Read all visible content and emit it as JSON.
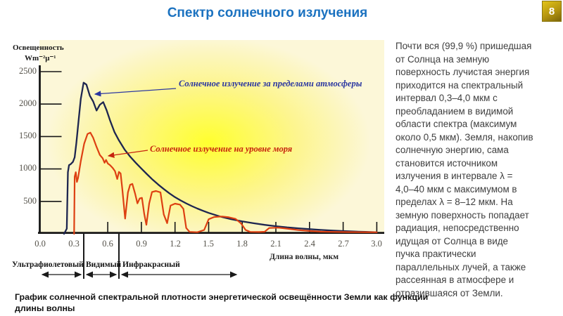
{
  "slide": {
    "number": "8",
    "title": "Спектр солнечного излучения",
    "title_color": "#1b72c0",
    "badge_color": "#b5950f"
  },
  "body": {
    "lines": [
      "Почти вся (99,9 %) пришедшая",
      "от Солнца на земную",
      "поверхность лучистая энергия",
      "приходится на спектральный",
      "интервал 0,3–4,0 мкм с",
      "преобладанием в видимой",
      "области спектра (максимум",
      "около 0,5 мкм). Земля, накопив",
      "солнечную энергию, сама",
      "становится источником",
      "излучения в интервале λ =",
      "4,0–40 мкм с максимумом в",
      "пределах λ = 8–12 мкм. На",
      "земную поверхность попадает",
      "радиация, непосредственно",
      "идущая от Солнца в виде",
      "пучка практически",
      "параллельных лучей, а также",
      "рассеянная в атмосфере и",
      "отразившаяся от Земли."
    ]
  },
  "caption": {
    "lines": [
      "График солнечной спектральной плотности энергетической освещённости Земли как функции",
      "длины волны"
    ]
  },
  "chart_data": {
    "type": "line",
    "title": "",
    "xlabel": "Длина волны, мкм",
    "ylabel": "Освещенность",
    "ylabel_units": "Wm⁻²μ⁻¹",
    "xlim": [
      0,
      3.0
    ],
    "ylim": [
      0,
      2500
    ],
    "grid": false,
    "x_tick_labels": [
      "0.0",
      "0.3",
      "0.6",
      "0.9",
      "1.2",
      "1.5",
      "1.8",
      "2.1",
      "2.4",
      "2.7",
      "3.0"
    ],
    "y_tick_labels": [
      "2500",
      "2000",
      "1500",
      "1000",
      "500"
    ],
    "background_glow_color": "#ffff2f",
    "series": [
      {
        "name": "Солнечное излучение за пределами атмосферы",
        "color": "#1e2650",
        "x": [
          0.21,
          0.235,
          0.245,
          0.255,
          0.27,
          0.29,
          0.305,
          0.32,
          0.34,
          0.36,
          0.385,
          0.41,
          0.44,
          0.47,
          0.5,
          0.53,
          0.56,
          0.59,
          0.62,
          0.66,
          0.7,
          0.75,
          0.8,
          0.85,
          0.9,
          0.95,
          1.0,
          1.05,
          1.1,
          1.15,
          1.2,
          1.25,
          1.3,
          1.35,
          1.4,
          1.45,
          1.5,
          1.6,
          1.7,
          1.8,
          1.9,
          2.0,
          2.1,
          2.2,
          2.3,
          2.4,
          2.5,
          2.6,
          2.7,
          2.8,
          2.9,
          3.0
        ],
        "y": [
          0,
          80,
          950,
          1060,
          1075,
          1110,
          1180,
          1400,
          1750,
          2080,
          2330,
          2300,
          2130,
          2040,
          1900,
          1990,
          2030,
          1905,
          1750,
          1570,
          1440,
          1300,
          1190,
          1095,
          1005,
          920,
          835,
          760,
          690,
          625,
          565,
          515,
          470,
          428,
          390,
          355,
          322,
          268,
          226,
          192,
          163,
          139,
          118,
          100,
          85,
          72,
          61,
          51,
          43,
          36,
          30,
          24
        ]
      },
      {
        "name": "Солнечное излучение на уровне моря",
        "color": "#dd4012",
        "x": [
          0.3,
          0.305,
          0.315,
          0.325,
          0.335,
          0.36,
          0.39,
          0.42,
          0.445,
          0.47,
          0.5,
          0.53,
          0.555,
          0.572,
          0.585,
          0.6,
          0.62,
          0.645,
          0.665,
          0.685,
          0.7,
          0.715,
          0.73,
          0.755,
          0.78,
          0.8,
          0.82,
          0.845,
          0.865,
          0.885,
          0.905,
          0.925,
          0.945,
          0.97,
          0.995,
          1.03,
          1.07,
          1.1,
          1.13,
          1.16,
          1.2,
          1.245,
          1.275,
          1.3,
          1.33,
          1.4,
          1.46,
          1.5,
          1.55,
          1.62,
          1.68,
          1.74,
          1.79,
          1.83,
          1.87,
          1.95,
          2.0,
          2.04,
          2.12,
          2.2,
          2.3,
          2.4,
          2.5,
          2.6,
          2.75,
          2.9,
          3.0
        ],
        "y": [
          0,
          880,
          950,
          800,
          860,
          1120,
          1390,
          1540,
          1560,
          1480,
          1340,
          1215,
          1165,
          1095,
          1140,
          1085,
          1060,
          1015,
          965,
          845,
          955,
          930,
          690,
          235,
          640,
          755,
          770,
          615,
          470,
          545,
          555,
          310,
          140,
          470,
          645,
          660,
          640,
          300,
          165,
          435,
          465,
          450,
          385,
          90,
          30,
          25,
          60,
          225,
          260,
          267,
          255,
          230,
          160,
          60,
          30,
          28,
          32,
          90,
          95,
          80,
          58,
          44,
          34,
          30,
          27,
          26,
          25
        ]
      }
    ],
    "annotations": [
      {
        "text": "Солнечное излучение за пределами атмосферы",
        "color": "#2a36a0"
      },
      {
        "text": "Солнечное излучение на уровне моря",
        "color": "#c6230e"
      }
    ],
    "spectral_regions": [
      {
        "label": "Ультрафиолетовый",
        "range_um": [
          0.0,
          0.38
        ]
      },
      {
        "label": "Видимый",
        "range_um": [
          0.38,
          0.7
        ]
      },
      {
        "label": "Инфракрасный",
        "range_um": [
          0.7,
          1.76
        ]
      }
    ]
  }
}
